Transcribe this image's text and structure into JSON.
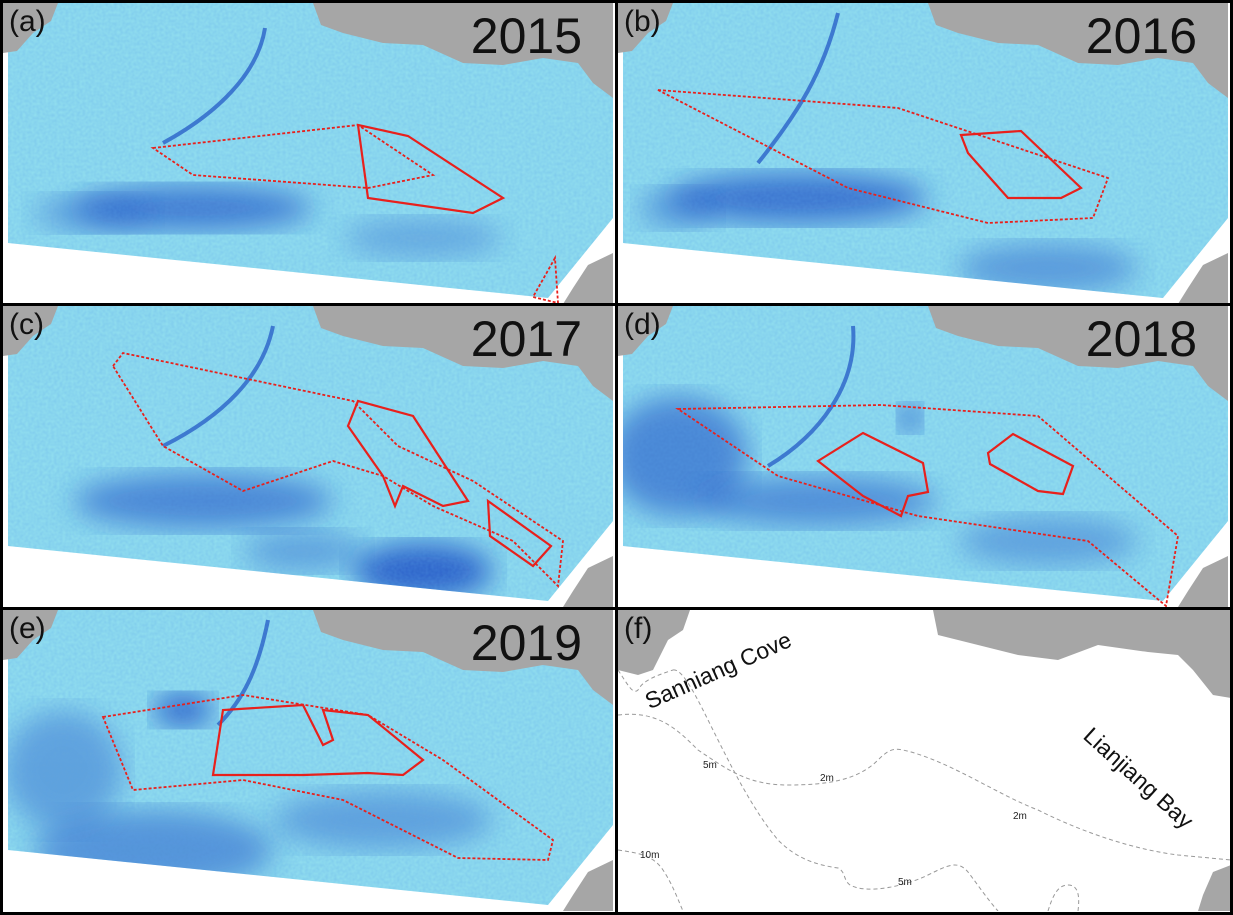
{
  "figure": {
    "panels": [
      {
        "label": "(a)",
        "year": "2015"
      },
      {
        "label": "(b)",
        "year": "2016"
      },
      {
        "label": "(c)",
        "year": "2017"
      },
      {
        "label": "(d)",
        "year": "2018"
      },
      {
        "label": "(e)",
        "year": "2019"
      },
      {
        "label": "(f)",
        "year": ""
      }
    ],
    "reference_map": {
      "place_names": [
        "Sanniang Cove",
        "Lianjiang Bay"
      ],
      "depth_contours": [
        "5m",
        "2m",
        "2m",
        "10m",
        "5m"
      ]
    },
    "colors": {
      "land": "#a6a6a6",
      "water_light": "#8fdcef",
      "water_dark": "#1a4fc4",
      "outline_red": "#e8201c",
      "contour": "#999999"
    }
  }
}
